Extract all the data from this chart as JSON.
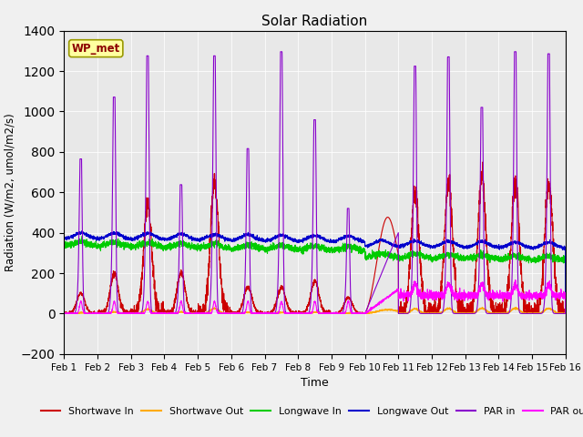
{
  "title": "Solar Radiation",
  "xlabel": "Time",
  "ylabel": "Radiation (W/m2, umol/m2/s)",
  "xlim": [
    0,
    15
  ],
  "ylim": [
    -200,
    1400
  ],
  "yticks": [
    -200,
    0,
    200,
    400,
    600,
    800,
    1000,
    1200,
    1400
  ],
  "xtick_labels": [
    "Feb 1",
    "Feb 2",
    "Feb 3",
    "Feb 4",
    "Feb 5",
    "Feb 6",
    "Feb 7",
    "Feb 8",
    "Feb 9",
    "Feb 10",
    "Feb 11",
    "Feb 12",
    "Feb 13",
    "Feb 14",
    "Feb 15",
    "Feb 16"
  ],
  "xtick_positions": [
    0,
    1,
    2,
    3,
    4,
    5,
    6,
    7,
    8,
    9,
    10,
    11,
    12,
    13,
    14,
    15
  ],
  "legend_labels": [
    "Shortwave In",
    "Shortwave Out",
    "Longwave In",
    "Longwave Out",
    "PAR in",
    "PAR out"
  ],
  "legend_colors": [
    "#cc0000",
    "#ffaa00",
    "#00cc00",
    "#0000cc",
    "#8800cc",
    "#ff00ff"
  ],
  "annotation_text": "WP_met",
  "background_color": "#e8e8e8",
  "n_days": 15,
  "pts_per_day": 288
}
